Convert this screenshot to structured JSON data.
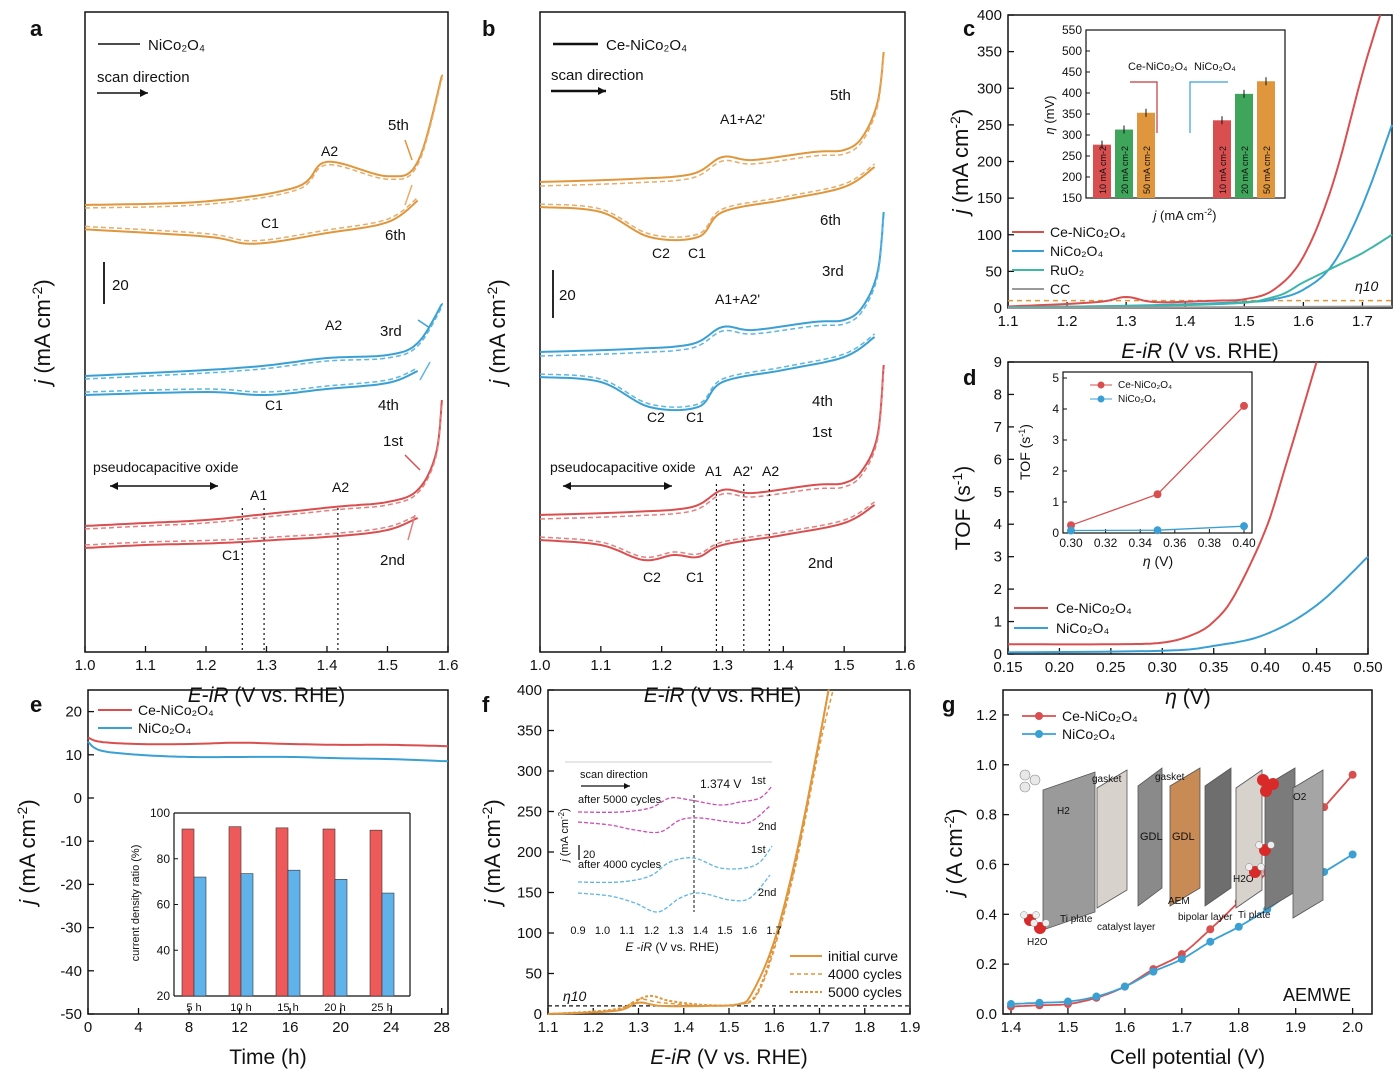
{
  "colors": {
    "red": "#d94f4f",
    "redLight": "#e28080",
    "orange": "#e0963c",
    "orangeLight": "#e6ad6b",
    "blue": "#3aa0d4",
    "blueLight": "#5fb6e0",
    "teal": "#3fb7a6",
    "gray": "#999999",
    "green": "#3fa55b",
    "darkred": "#c0393b",
    "axis": "#111111"
  },
  "figure": {
    "panels": [
      {
        "letter": "a"
      },
      {
        "letter": "b"
      },
      {
        "letter": "c"
      },
      {
        "letter": "d"
      },
      {
        "letter": "e"
      },
      {
        "letter": "f"
      },
      {
        "letter": "g"
      }
    ]
  },
  "chart_data": [
    {
      "panel": "a",
      "type": "line",
      "legend": "NiCo2O4",
      "legend_html_sub": true,
      "xlabel": "E-iR (V vs. RHE)",
      "ylabel": "j (mA cm-2)",
      "xlim": [
        1.0,
        1.6
      ],
      "xticks": [
        "1.0",
        "1.1",
        "1.2",
        "1.3",
        "1.4",
        "1.5",
        "1.6"
      ],
      "scale_bar": "20",
      "annotations": {
        "scan": "scan direction",
        "pseudo": "pseudocapacitive oxide",
        "c5": "5th",
        "c6": "6th",
        "c3": "3rd",
        "c4": "4th",
        "c1": "1st",
        "c2": "2nd",
        "A2": "A2",
        "C1": "C1",
        "A1": "A1"
      },
      "series": [
        {
          "name": "1st/2nd",
          "anodic": [
            [
              1.0,
              -2
            ],
            [
              1.1,
              -1
            ],
            [
              1.2,
              0
            ],
            [
              1.3,
              2
            ],
            [
              1.42,
              4.5
            ],
            [
              1.5,
              6
            ],
            [
              1.55,
              10
            ],
            [
              1.58,
              22
            ],
            [
              1.59,
              40
            ]
          ],
          "cathodic": [
            [
              1.0,
              -6
            ],
            [
              1.1,
              -5
            ],
            [
              1.2,
              -4.5
            ],
            [
              1.26,
              -4
            ],
            [
              1.3,
              -3.5
            ],
            [
              1.42,
              -2
            ],
            [
              1.5,
              0
            ],
            [
              1.55,
              4
            ]
          ]
        },
        {
          "name": "3rd/4th",
          "anodic": [
            [
              1.0,
              -2
            ],
            [
              1.2,
              0
            ],
            [
              1.3,
              1.5
            ],
            [
              1.4,
              4
            ],
            [
              1.5,
              5
            ],
            [
              1.55,
              9
            ],
            [
              1.59,
              22
            ]
          ],
          "cathodic": [
            [
              1.0,
              -5
            ],
            [
              1.2,
              -4
            ],
            [
              1.3,
              -5
            ],
            [
              1.4,
              -3
            ],
            [
              1.5,
              -1
            ],
            [
              1.55,
              3
            ]
          ]
        },
        {
          "name": "5th/6th",
          "anodic": [
            [
              1.0,
              0
            ],
            [
              1.2,
              1
            ],
            [
              1.35,
              5
            ],
            [
              1.4,
              12
            ],
            [
              1.5,
              8
            ],
            [
              1.55,
              12
            ],
            [
              1.59,
              36
            ]
          ],
          "cathodic": [
            [
              1.0,
              -4
            ],
            [
              1.2,
              -6
            ],
            [
              1.28,
              -8
            ],
            [
              1.4,
              -5
            ],
            [
              1.5,
              -2
            ],
            [
              1.55,
              4
            ]
          ]
        }
      ]
    },
    {
      "panel": "b",
      "type": "line",
      "legend": "Ce-NiCo2O4",
      "xlabel": "E-iR (V vs. RHE)",
      "ylabel": "j (mA cm-2)",
      "xlim": [
        1.0,
        1.6
      ],
      "xticks": [
        "1.0",
        "1.1",
        "1.2",
        "1.3",
        "1.4",
        "1.5",
        "1.6"
      ],
      "scale_bar": "20",
      "annotations": {
        "scan": "scan direction",
        "pseudo": "pseudocapacitive oxide",
        "c5": "5th",
        "c6": "6th",
        "c3": "3rd",
        "c4": "4th",
        "c1": "1st",
        "c2": "2nd",
        "A1A2p": "A1+A2'",
        "C2": "C2",
        "C1": "C1",
        "A1": "A1",
        "A2p": "A2'",
        "A2": "A2"
      },
      "vlines": [
        1.29,
        1.335,
        1.377
      ]
    },
    {
      "panel": "c",
      "type": "line",
      "xlabel": "E-iR (V vs. RHE)",
      "ylabel": "j (mA cm-2)",
      "xlim": [
        1.1,
        1.75
      ],
      "ylim": [
        0,
        400
      ],
      "xticks": [
        "1.1",
        "1.2",
        "1.3",
        "1.4",
        "1.5",
        "1.6",
        "1.7"
      ],
      "yticks": [
        "0",
        "50",
        "100",
        "150",
        "200",
        "250",
        "300",
        "350",
        "400"
      ],
      "legend": [
        "Ce-NiCo2O4",
        "NiCo2O4",
        "RuO2",
        "CC"
      ],
      "eta_label": "η10",
      "series": [
        {
          "name": "Ce-NiCo2O4",
          "x": [
            1.1,
            1.25,
            1.3,
            1.35,
            1.45,
            1.5,
            1.55,
            1.6,
            1.65,
            1.7,
            1.73
          ],
          "y": [
            2,
            8,
            15,
            8,
            10,
            12,
            25,
            70,
            170,
            320,
            400
          ]
        },
        {
          "name": "NiCo2O4",
          "x": [
            1.1,
            1.3,
            1.5,
            1.55,
            1.6,
            1.65,
            1.7,
            1.75
          ],
          "y": [
            1,
            3,
            8,
            12,
            25,
            60,
            140,
            250
          ]
        },
        {
          "name": "RuO2",
          "x": [
            1.1,
            1.45,
            1.55,
            1.6,
            1.65,
            1.7,
            1.75
          ],
          "y": [
            1,
            5,
            15,
            35,
            55,
            75,
            100
          ]
        },
        {
          "name": "CC",
          "x": [
            1.1,
            1.75
          ],
          "y": [
            0,
            2
          ]
        }
      ],
      "inset": {
        "type": "bar",
        "ylabel": "η (mV)",
        "xlabel": "j (mA cm-2)",
        "ylim": [
          150,
          550
        ],
        "yticks": [
          "150",
          "200",
          "250",
          "300",
          "350",
          "400",
          "450",
          "500",
          "550"
        ],
        "groups": [
          "Ce-NiCo2O4",
          "NiCo2O4"
        ],
        "categories": [
          "10 mA cm-2",
          "20 mA cm-2",
          "50 mA cm-2"
        ],
        "values": [
          [
            277,
            313,
            353
          ],
          [
            335,
            398,
            428
          ]
        ]
      }
    },
    {
      "panel": "d",
      "type": "line",
      "xlabel": "η (V)",
      "ylabel": "TOF (s-1)",
      "xlim": [
        0.15,
        0.5
      ],
      "ylim": [
        0,
        9
      ],
      "xticks": [
        "0.15",
        "0.20",
        "0.25",
        "0.30",
        "0.35",
        "0.40",
        "0.45",
        "0.50"
      ],
      "yticks": [
        "0",
        "1",
        "2",
        "3",
        "4",
        "5",
        "6",
        "7",
        "8",
        "9"
      ],
      "legend": [
        "Ce-NiCo2O4",
        "NiCo2O4"
      ],
      "series": [
        {
          "name": "Ce-NiCo2O4",
          "x": [
            0.15,
            0.25,
            0.3,
            0.33,
            0.35,
            0.37,
            0.4,
            0.42,
            0.45
          ],
          "y": [
            0.3,
            0.3,
            0.35,
            0.6,
            1.0,
            1.8,
            3.8,
            5.8,
            9.0
          ]
        },
        {
          "name": "NiCo2O4",
          "x": [
            0.15,
            0.3,
            0.35,
            0.4,
            0.45,
            0.5
          ],
          "y": [
            0.05,
            0.1,
            0.25,
            0.6,
            1.5,
            3.0
          ]
        }
      ],
      "inset": {
        "xlabel": "η (V)",
        "ylabel": "TOF (s-1)",
        "xlim": [
          0.3,
          0.4
        ],
        "ylim": [
          0,
          5
        ],
        "xticks": [
          "0.30",
          "0.32",
          "0.34",
          "0.36",
          "0.38",
          "0.40"
        ],
        "yticks": [
          "0",
          "1",
          "2",
          "3",
          "4",
          "5"
        ],
        "series": [
          {
            "name": "Ce-NiCo2O4",
            "x": [
              0.3,
              0.35,
              0.4
            ],
            "y": [
              0.25,
              1.25,
              4.1
            ]
          },
          {
            "name": "NiCo2O4",
            "x": [
              0.3,
              0.35,
              0.4
            ],
            "y": [
              0.08,
              0.09,
              0.22
            ]
          }
        ]
      }
    },
    {
      "panel": "e",
      "type": "line",
      "xlabel": "Time (h)",
      "ylabel": "j (mA cm-2)",
      "xlim": [
        0,
        28.5
      ],
      "ylim": [
        -50,
        25
      ],
      "xticks": [
        "0",
        "4",
        "8",
        "12",
        "16",
        "20",
        "24",
        "28"
      ],
      "yticks": [
        "20",
        "10",
        "0",
        "-10",
        "-20",
        "-30",
        "-40",
        "-50"
      ],
      "legend": [
        "Ce-NiCo2O4",
        "NiCo2O4"
      ],
      "series": [
        {
          "name": "Ce-NiCo2O4",
          "x": [
            0,
            1,
            4,
            8,
            12,
            16,
            20,
            24,
            28.5
          ],
          "y": [
            14,
            13,
            12.5,
            12.5,
            12.8,
            12.5,
            12.3,
            12.3,
            12
          ]
        },
        {
          "name": "NiCo2O4",
          "x": [
            0,
            1,
            4,
            8,
            12,
            16,
            20,
            24,
            28.5
          ],
          "y": [
            13,
            11,
            10,
            9.5,
            9.5,
            9.5,
            9.2,
            9,
            8.5
          ]
        }
      ],
      "inset": {
        "type": "bar",
        "ylabel": "current density ratio (%)",
        "ylim": [
          20,
          100
        ],
        "yticks": [
          "20",
          "40",
          "60",
          "80",
          "100"
        ],
        "categories": [
          "5 h",
          "10 h",
          "15 h",
          "20 h",
          "25 h"
        ],
        "series": [
          {
            "name": "Ce-NiCo2O4",
            "values": [
              93,
              94,
              93.5,
              93,
              92.5
            ]
          },
          {
            "name": "NiCo2O4",
            "values": [
              72,
              73.5,
              75,
              71,
              65
            ]
          }
        ]
      }
    },
    {
      "panel": "f",
      "type": "line",
      "xlabel": "E-iR (V vs. RHE)",
      "ylabel": "j (mA cm-2)",
      "xlim": [
        1.1,
        1.9
      ],
      "ylim": [
        0,
        400
      ],
      "xticks": [
        "1.1",
        "1.2",
        "1.3",
        "1.4",
        "1.5",
        "1.6",
        "1.7",
        "1.8",
        "1.9"
      ],
      "yticks": [
        "0",
        "50",
        "100",
        "150",
        "200",
        "250",
        "300",
        "350",
        "400"
      ],
      "legend": [
        "initial curve",
        "4000 cycles",
        "5000 cycles"
      ],
      "eta_label": "η10",
      "series": [
        {
          "name": "initial curve",
          "x": [
            1.1,
            1.25,
            1.3,
            1.35,
            1.45,
            1.52,
            1.55,
            1.6,
            1.65,
            1.7,
            1.72
          ],
          "y": [
            0,
            4,
            14,
            10,
            10,
            12,
            25,
            90,
            200,
            340,
            400
          ]
        },
        {
          "name": "4000 cycles",
          "x": [
            1.1,
            1.25,
            1.3,
            1.35,
            1.45,
            1.52,
            1.56,
            1.6,
            1.65,
            1.7,
            1.73
          ],
          "y": [
            0,
            5,
            18,
            14,
            10,
            12,
            22,
            80,
            190,
            330,
            400
          ]
        },
        {
          "name": "5000 cycles",
          "x": [
            1.1,
            1.25,
            1.32,
            1.37,
            1.45,
            1.52,
            1.56,
            1.6,
            1.65,
            1.7,
            1.72
          ],
          "y": [
            0,
            6,
            22,
            16,
            11,
            12,
            24,
            85,
            195,
            340,
            400
          ]
        }
      ],
      "inset": {
        "scan": "scan direction",
        "v": "1.374 V",
        "after5000": "after 5000 cycles",
        "after4000": "after 4000 cycles",
        "ylabel": "j (mA cm-2)",
        "scale": "20",
        "xlabel": "E -iR (V vs. RHE)",
        "xticks": [
          "0.9",
          "1.0",
          "1.1",
          "1.2",
          "1.3",
          "1.4",
          "1.5",
          "1.6",
          "1.7"
        ],
        "c1": "1st",
        "c2": "2nd"
      }
    },
    {
      "panel": "g",
      "type": "line",
      "xlabel": "Cell potential (V)",
      "ylabel": "j (A cm-2)",
      "xlim": [
        1.4,
        2.02
      ],
      "ylim": [
        0,
        1.3
      ],
      "xticks": [
        "1.4",
        "1.5",
        "1.6",
        "1.7",
        "1.8",
        "1.9",
        "2.0"
      ],
      "yticks": [
        "0.0",
        "0.2",
        "0.4",
        "0.6",
        "0.8",
        "1.0",
        "1.2"
      ],
      "legend": [
        "Ce-NiCo2O4",
        "NiCo2O4"
      ],
      "tag": "AEMWE",
      "series": [
        {
          "name": "Ce-NiCo2O4",
          "x": [
            1.4,
            1.45,
            1.5,
            1.55,
            1.6,
            1.65,
            1.7,
            1.75,
            1.8,
            1.85,
            1.9,
            1.95,
            2.0
          ],
          "y": [
            0.03,
            0.035,
            0.04,
            0.065,
            0.11,
            0.18,
            0.24,
            0.34,
            0.45,
            0.57,
            0.7,
            0.83,
            0.96
          ]
        },
        {
          "name": "NiCo2O4",
          "x": [
            1.4,
            1.45,
            1.5,
            1.55,
            1.6,
            1.65,
            1.7,
            1.75,
            1.8,
            1.85,
            1.9,
            1.95,
            2.0
          ],
          "y": [
            0.04,
            0.045,
            0.05,
            0.07,
            0.11,
            0.17,
            0.22,
            0.29,
            0.35,
            0.42,
            0.5,
            0.57,
            0.64
          ]
        }
      ],
      "diagram_labels": {
        "h2": "H2",
        "o2": "O2",
        "h2o_l": "H2O",
        "h2o_r": "H2O",
        "gasket1": "gasket",
        "gasket2": "gasket",
        "gdl1": "GDL",
        "gdl2": "GDL",
        "ti1": "Ti plate",
        "ti2": "Ti plate",
        "aem": "AEM",
        "cat": "catalyst layer",
        "bip": "bipolar layer"
      }
    }
  ]
}
